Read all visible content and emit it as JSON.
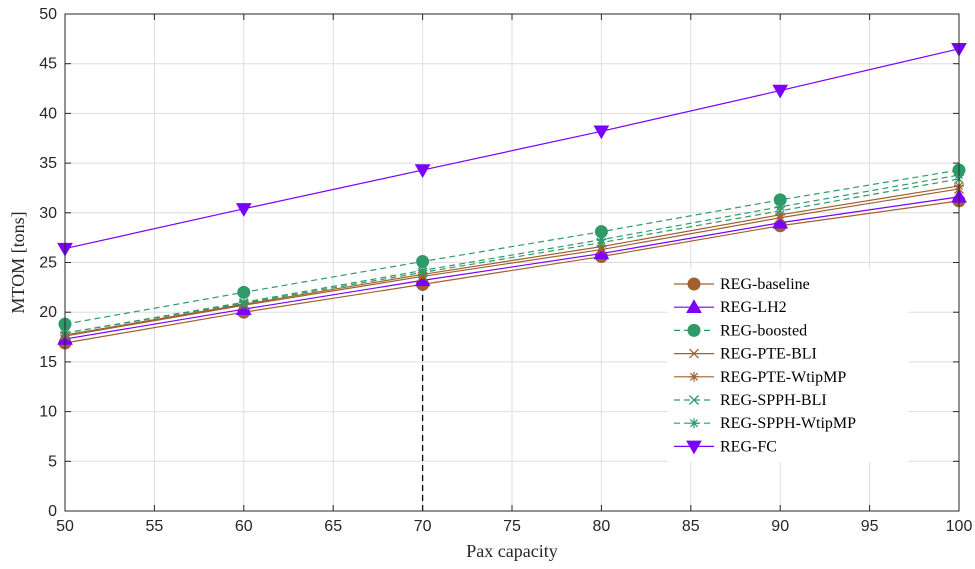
{
  "chart_data": {
    "type": "line",
    "title": "",
    "xlabel": "Pax capacity",
    "ylabel": "MTOM [tons]",
    "xlim": [
      50,
      100
    ],
    "ylim": [
      0,
      50
    ],
    "xticks": [
      50,
      55,
      60,
      65,
      70,
      75,
      80,
      85,
      90,
      95,
      100
    ],
    "yticks": [
      0,
      5,
      10,
      15,
      20,
      25,
      30,
      35,
      40,
      45,
      50
    ],
    "grid": true,
    "legend_position": "right",
    "x": [
      50,
      60,
      70,
      80,
      90,
      100
    ],
    "series": [
      {
        "name": "REG-baseline",
        "values": [
          16.9,
          20.0,
          22.8,
          25.6,
          28.7,
          31.2
        ],
        "color": "#a0612e",
        "dash": "solid",
        "marker": "circle"
      },
      {
        "name": "REG-LH2",
        "values": [
          17.3,
          20.3,
          23.2,
          25.9,
          29.0,
          31.6
        ],
        "color": "#7a00ff",
        "dash": "solid",
        "marker": "triangle-up"
      },
      {
        "name": "REG-boosted",
        "values": [
          18.8,
          22.0,
          25.1,
          28.1,
          31.3,
          34.3
        ],
        "color": "#2e9a6a",
        "dash": "dashed",
        "marker": "circle"
      },
      {
        "name": "REG-PTE-BLI",
        "values": [
          17.6,
          20.7,
          23.6,
          26.3,
          29.5,
          32.4
        ],
        "color": "#a0612e",
        "dash": "solid",
        "marker": "x"
      },
      {
        "name": "REG-PTE-WtipMP",
        "values": [
          17.7,
          20.8,
          23.8,
          26.6,
          29.8,
          32.7
        ],
        "color": "#a0612e",
        "dash": "solid",
        "marker": "asterisk"
      },
      {
        "name": "REG-SPPH-BLI",
        "values": [
          17.9,
          20.9,
          24.0,
          27.0,
          30.2,
          33.4
        ],
        "color": "#2e9a6a",
        "dash": "dashed",
        "marker": "x"
      },
      {
        "name": "REG-SPPH-WtipMP",
        "values": [
          17.9,
          21.0,
          24.2,
          27.3,
          30.6,
          33.8
        ],
        "color": "#2e9a6a",
        "dash": "dashed",
        "marker": "asterisk"
      },
      {
        "name": "REG-FC",
        "values": [
          26.4,
          30.4,
          34.3,
          38.2,
          42.3,
          46.5
        ],
        "color": "#7a00ff",
        "dash": "solid",
        "marker": "triangle-down"
      }
    ],
    "reference_line": {
      "x": 70,
      "y_from": 0,
      "y_to": 22.8,
      "style": "dashed",
      "color": "#000000"
    }
  }
}
